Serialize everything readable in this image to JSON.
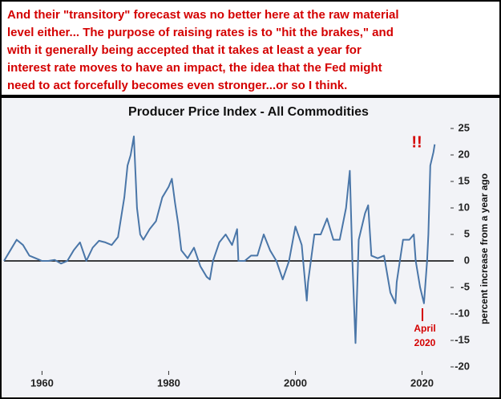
{
  "commentary": [
    "And their \"transitory\" forecast was no better here at the raw material",
    "level either... The purpose of raising rates is to \"hit the brakes,\" and",
    "with it generally being accepted that it takes at least a year for",
    "interest rate moves to have an impact, the idea that the Fed might",
    "need to act forcefully becomes even stronger...or so I think."
  ],
  "chart_data": {
    "type": "line",
    "title": "Producer Price Index - All Commodities",
    "y_label": "percent increase from a year ago",
    "color": "#4a76a8",
    "x": [
      1954,
      1955,
      1956,
      1957,
      1958,
      1959,
      1960,
      1961,
      1962,
      1963,
      1964,
      1965,
      1966,
      1967,
      1968,
      1969,
      1970,
      1971,
      1972,
      1973,
      1973.5,
      1974,
      1974.5,
      1975,
      1975.5,
      1976,
      1977,
      1978,
      1979,
      1980,
      1980.5,
      1981,
      1981.5,
      1982,
      1983,
      1984,
      1985,
      1986,
      1986.5,
      1987,
      1988,
      1989,
      1990,
      1990.8,
      1991,
      1992,
      1993,
      1994,
      1995,
      1996,
      1997,
      1998,
      1999,
      2000,
      2001,
      2001.8,
      2002,
      2003,
      2004,
      2005,
      2006,
      2007,
      2008,
      2008.6,
      2009,
      2009.5,
      2010,
      2011,
      2011.5,
      2012,
      2013,
      2014,
      2015,
      2015.8,
      2016,
      2017,
      2018,
      2018.7,
      2019,
      2019.7,
      2020.3,
      2020.8,
      2021,
      2021.3,
      2021.8,
      2022
    ],
    "values": [
      0,
      2,
      4,
      3,
      1,
      0.5,
      0,
      0,
      0.2,
      -0.5,
      0,
      2,
      3.5,
      0,
      2.5,
      3.8,
      3.5,
      3,
      4.5,
      12,
      18,
      20,
      23.5,
      10,
      5,
      4,
      6,
      7.5,
      12,
      14,
      15.5,
      11,
      7,
      2,
      0.5,
      2.5,
      -1,
      -3,
      -3.5,
      0,
      3.5,
      5,
      3,
      6,
      0,
      0,
      1,
      1,
      5,
      2,
      0,
      -3.5,
      0,
      6.5,
      3,
      -7.5,
      -4,
      5,
      5,
      8,
      4,
      4,
      10,
      17,
      0,
      -15.5,
      4,
      9,
      10.5,
      1,
      0.5,
      1,
      -6,
      -8,
      -4,
      4,
      4,
      5,
      0,
      -5,
      -8,
      0,
      5,
      18,
      20.5,
      22
    ],
    "xlim": [
      1954,
      2025
    ],
    "xticks": [
      1960,
      1980,
      2000,
      2020
    ],
    "ylim": [
      -20,
      25
    ],
    "yticks": [
      25,
      20,
      15,
      10,
      5,
      0,
      -5,
      -10,
      -15,
      -20
    ],
    "annotations": [
      "!!",
      "April",
      "2020"
    ]
  }
}
